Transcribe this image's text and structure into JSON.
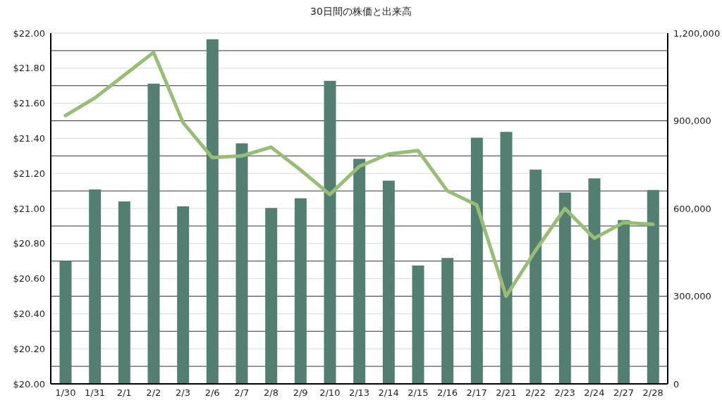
{
  "chart_data": {
    "type": "bar",
    "title": "30日間の株価と出来高",
    "categories": [
      "1/30",
      "1/31",
      "2/1",
      "2/2",
      "2/3",
      "2/6",
      "2/7",
      "2/8",
      "2/9",
      "2/10",
      "2/13",
      "2/14",
      "2/15",
      "2/16",
      "2/17",
      "2/21",
      "2/22",
      "2/23",
      "2/24",
      "2/27",
      "2/28"
    ],
    "series": [
      {
        "axis": "y2",
        "color": "#537f72",
        "values": [
          420000,
          665000,
          624000,
          1027000,
          607000,
          1179000,
          823000,
          602000,
          635000,
          1037000,
          770000,
          695000,
          405000,
          431000,
          842000,
          862000,
          733000,
          655000,
          703000,
          560000,
          663000
        ]
      },
      {
        "type": "line",
        "color": "#98bd74",
        "values": [
          21.53,
          21.63,
          21.76,
          21.89,
          21.49,
          21.29,
          21.3,
          21.35,
          21.22,
          21.08,
          21.24,
          21.31,
          21.33,
          21.1,
          21.02,
          20.5,
          20.76,
          21.0,
          20.83,
          20.92,
          20.91
        ]
      }
    ],
    "ylim": [
      20,
      22
    ],
    "yticks": [
      {
        "value": 20,
        "label": "$20.00"
      },
      {
        "value": 20.1,
        "label": null
      },
      {
        "value": 20.2,
        "label": "$20.20"
      },
      {
        "value": 20.3,
        "label": null
      },
      {
        "value": 20.4,
        "label": "$20.40"
      },
      {
        "value": 20.5,
        "label": null
      },
      {
        "value": 20.6,
        "label": "$20.60"
      },
      {
        "value": 20.7,
        "label": null
      },
      {
        "value": 20.8,
        "label": "$20.80"
      },
      {
        "value": 20.9,
        "label": null
      },
      {
        "value": 21,
        "label": "$21.00"
      },
      {
        "value": 21.1,
        "label": null
      },
      {
        "value": 21.2,
        "label": "$21.20"
      },
      {
        "value": 21.3,
        "label": null
      },
      {
        "value": 21.4,
        "label": "$21.40"
      },
      {
        "value": 21.5,
        "label": null
      },
      {
        "value": 21.6,
        "label": "$21.60"
      },
      {
        "value": 21.7,
        "label": null
      },
      {
        "value": 21.8,
        "label": "$21.80"
      },
      {
        "value": 21.9,
        "label": null
      },
      {
        "value": 22,
        "label": "$22.00"
      }
    ],
    "y2lim": [
      0,
      1200000
    ],
    "y2ticks": [
      0,
      {
        "value": 300000,
        "label": "300,000"
      },
      {
        "value": 600000,
        "label": "600,000"
      },
      {
        "value": 900000,
        "label": "900,000"
      },
      {
        "value": 1200000,
        "label": "1,200,000"
      }
    ],
    "grid": "y",
    "line_style": "solid"
  }
}
